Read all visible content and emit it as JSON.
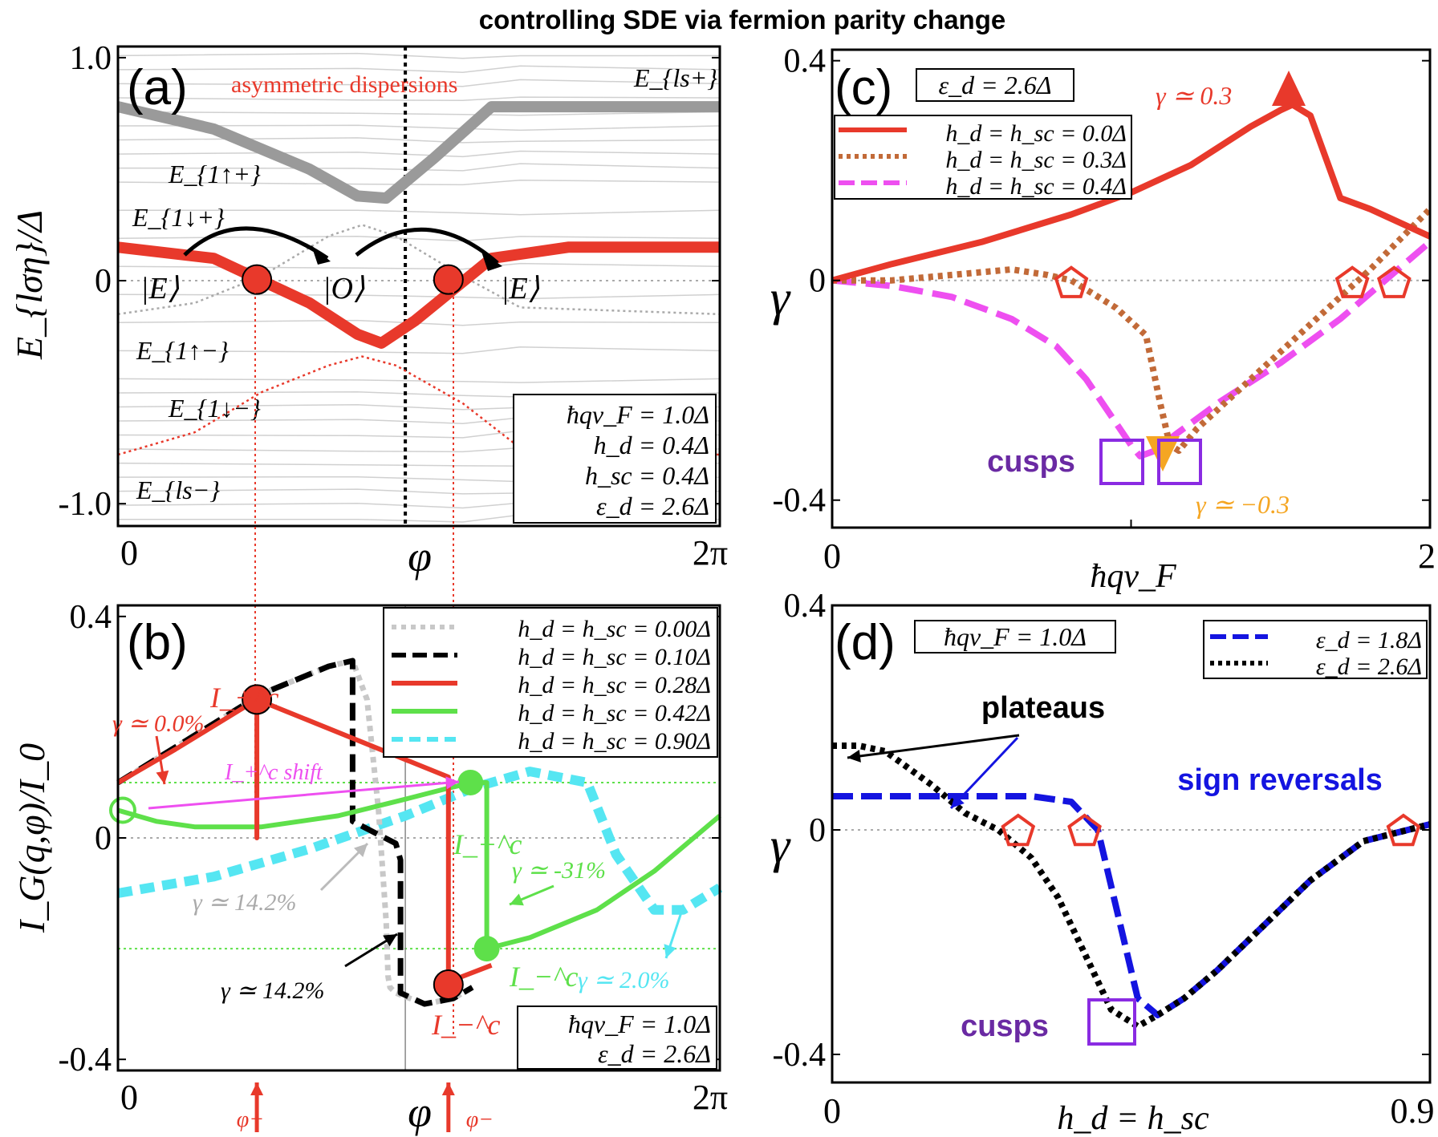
{
  "figure_title": "controlling SDE via fermion parity change",
  "colors": {
    "red": "#e8392b",
    "gray": "#9a9a9a",
    "green": "#5ee04a",
    "magenta": "#ee4ff0",
    "orange_brown": "#c26a38",
    "blue": "#1414e0",
    "purple": "#8a2be2",
    "cyan": "#55e6f2",
    "orange": "#f5a623",
    "black": "#000000"
  },
  "chart_data": [
    {
      "panel": "(a)",
      "type": "line",
      "ylabel": "E_{lση}/Δ",
      "xlabel": "φ",
      "xticks": [
        "0",
        "2π"
      ],
      "yticks": [
        "1.0",
        "0",
        "-1.0"
      ],
      "xlim": [
        0,
        6.2832
      ],
      "ylim": [
        -1.1,
        1.05
      ],
      "title_annotation": "asymmetric dispersions",
      "state_labels": [
        "|E⟩",
        "|O⟩",
        "|E⟩"
      ],
      "band_labels": [
        "E_{ls+}",
        "E_{1↑+}",
        "E_{1↓+}",
        "E_{1↑−}",
        "E_{1↓−}",
        "E_{ls−}"
      ],
      "info_box": [
        "ħqv_F = 1.0Δ",
        "h_d = 0.4Δ",
        "h_sc = 0.4Δ",
        "ε_d = 2.6Δ"
      ],
      "crossing_points_phi": [
        1.45,
        3.45
      ],
      "series": [
        {
          "name": "E_{1↑+}",
          "x": [
            0,
            1.0,
            2.0,
            2.5,
            2.8,
            3.3,
            3.9,
            4.7,
            6.2832
          ],
          "y": [
            0.78,
            0.68,
            0.5,
            0.38,
            0.37,
            0.55,
            0.78,
            0.78,
            0.78
          ]
        },
        {
          "name": "E_{1↓+}",
          "x": [
            0,
            0.8,
            1.5,
            2.2,
            2.55,
            2.9,
            3.6,
            4.2,
            6.2832
          ],
          "y": [
            -0.15,
            -0.1,
            0.02,
            0.2,
            0.25,
            0.2,
            0.02,
            -0.12,
            -0.15
          ]
        },
        {
          "name": "E_{1↑−}",
          "x": [
            0,
            1.0,
            2.0,
            2.5,
            2.75,
            3.1,
            3.9,
            4.7,
            6.2832
          ],
          "y": [
            0.15,
            0.1,
            -0.1,
            -0.24,
            -0.28,
            -0.18,
            0.1,
            0.15,
            0.15
          ]
        },
        {
          "name": "E_{1↓−}",
          "x": [
            0,
            0.8,
            1.5,
            2.2,
            2.55,
            2.9,
            3.6,
            4.2,
            6.2832
          ],
          "y": [
            -0.78,
            -0.68,
            -0.5,
            -0.38,
            -0.34,
            -0.38,
            -0.55,
            -0.75,
            -0.78
          ]
        }
      ]
    },
    {
      "panel": "(b)",
      "type": "line",
      "ylabel": "I_G(q,φ)/I_0",
      "xlabel": "φ",
      "xticks": [
        "0",
        "2π"
      ],
      "yticks": [
        "0.4",
        "0",
        "-0.4"
      ],
      "xlim": [
        0,
        6.2832
      ],
      "ylim": [
        -0.42,
        0.42
      ],
      "phase_markers": [
        "φ+",
        "φ−"
      ],
      "legend": [
        "h_d = h_sc = 0.00Δ",
        "h_d = h_sc = 0.10Δ",
        "h_d = h_sc = 0.28Δ",
        "h_d = h_sc = 0.42Δ",
        "h_d = h_sc = 0.90Δ"
      ],
      "info_box": [
        "ħqv_F = 1.0Δ",
        "ε_d = 2.6Δ"
      ],
      "annotations": [
        "γ ≃ 0.0%",
        "γ ≃ 14.2%",
        "γ ≃ 14.2%",
        "γ ≃ -31%",
        "γ ≃ 2.0%",
        "I_+^c shift"
      ],
      "critical_labels": [
        "I_+^c",
        "I_−^c",
        "I_+^c",
        "I_−^c"
      ],
      "series": [
        {
          "name": "h_d = h_sc = 0.00Δ",
          "x": [
            0,
            1.5,
            2.2,
            2.45,
            2.6,
            2.72,
            2.8,
            2.82,
            2.84,
            2.9,
            3.2,
            3.5,
            3.7
          ],
          "y": [
            0.1,
            0.26,
            0.31,
            0.32,
            0.25,
            0.05,
            -0.15,
            -0.25,
            -0.27,
            -0.28,
            -0.3,
            -0.29,
            -0.27
          ]
        },
        {
          "name": "h_d = h_sc = 0.10Δ",
          "x": [
            0,
            1.5,
            2.2,
            2.45,
            2.45,
            2.9,
            2.95,
            2.95,
            3.2,
            3.5,
            3.7
          ],
          "y": [
            0.1,
            0.26,
            0.31,
            0.32,
            0.03,
            -0.01,
            -0.04,
            -0.28,
            -0.3,
            -0.29,
            -0.27
          ]
        },
        {
          "name": "h_d = h_sc = 0.28Δ",
          "x": [
            0,
            0.6,
            1.45,
            1.45,
            1.45,
            3.45,
            3.45,
            3.45,
            3.9
          ],
          "y": [
            0.1,
            0.16,
            0.25,
            0.0,
            0.25,
            0.11,
            -0.26,
            -0.26,
            -0.23
          ]
        },
        {
          "name": "h_d = h_sc = 0.42Δ",
          "x": [
            0,
            0.4,
            0.8,
            1.5,
            2.3,
            3.0,
            3.45,
            3.7,
            3.85,
            3.85,
            4.3,
            5.0,
            5.6,
            6.2832
          ],
          "y": [
            0.05,
            0.03,
            0.02,
            0.02,
            0.04,
            0.07,
            0.09,
            0.1,
            0.1,
            -0.2,
            -0.18,
            -0.13,
            -0.06,
            0.04
          ]
        },
        {
          "name": "h_d = h_sc = 0.90Δ",
          "x": [
            0,
            1.0,
            2.0,
            3.0,
            3.7,
            4.3,
            4.9,
            5.2,
            5.6,
            5.9,
            6.2832
          ],
          "y": [
            -0.1,
            -0.07,
            -0.02,
            0.04,
            0.09,
            0.12,
            0.1,
            -0.03,
            -0.13,
            -0.13,
            -0.09
          ]
        }
      ]
    },
    {
      "panel": "(c)",
      "type": "line",
      "ylabel": "γ",
      "xlabel": "ħqv_F",
      "xticks": [
        "0",
        "2"
      ],
      "yticks": [
        "0.4",
        "0",
        "-0.4"
      ],
      "xlim": [
        0,
        2
      ],
      "ylim": [
        -0.45,
        0.42
      ],
      "info_box": "ε_d = 2.6Δ",
      "legend": [
        "h_d = h_sc = 0.0Δ",
        "h_d = h_sc = 0.3Δ",
        "h_d = h_sc = 0.4Δ"
      ],
      "annotations": [
        "γ ≃ 0.3",
        "γ ≃ −0.3",
        "cusps"
      ],
      "sign_reversals_x": [
        0.8,
        1.74,
        1.88
      ],
      "series": [
        {
          "name": "h_d = h_sc = 0.0Δ",
          "x": [
            0,
            0.2,
            0.5,
            0.8,
            1.0,
            1.2,
            1.4,
            1.5,
            1.54,
            1.6,
            1.7,
            1.8,
            2.0
          ],
          "y": [
            0.0,
            0.03,
            0.07,
            0.12,
            0.16,
            0.21,
            0.28,
            0.31,
            0.32,
            0.3,
            0.15,
            0.13,
            0.08
          ]
        },
        {
          "name": "h_d = h_sc = 0.3Δ",
          "x": [
            0,
            0.2,
            0.4,
            0.6,
            0.72,
            0.8,
            0.95,
            1.05,
            1.1,
            1.13,
            1.16,
            1.22,
            1.4,
            1.6,
            1.8,
            2.0
          ],
          "y": [
            0.0,
            0.0,
            0.01,
            0.02,
            0.01,
            0.0,
            -0.05,
            -0.1,
            -0.23,
            -0.3,
            -0.31,
            -0.27,
            -0.18,
            -0.08,
            0.02,
            0.13
          ]
        },
        {
          "name": "h_d = h_sc = 0.4Δ",
          "x": [
            0,
            0.2,
            0.4,
            0.6,
            0.75,
            0.85,
            0.95,
            1.0,
            1.03,
            1.08,
            1.15,
            1.3,
            1.5,
            1.7,
            1.85,
            2.0
          ],
          "y": [
            0.0,
            -0.01,
            -0.03,
            -0.07,
            -0.12,
            -0.18,
            -0.26,
            -0.3,
            -0.32,
            -0.31,
            -0.28,
            -0.22,
            -0.15,
            -0.07,
            0.0,
            0.07
          ]
        }
      ]
    },
    {
      "panel": "(d)",
      "type": "line",
      "ylabel": "γ",
      "xlabel": "h_d = h_sc",
      "xticks": [
        "0",
        "0.9"
      ],
      "yticks": [
        "0.4",
        "0",
        "-0.4"
      ],
      "xlim": [
        0,
        0.9
      ],
      "ylim": [
        -0.45,
        0.4
      ],
      "info_box": "ħqv_F = 1.0Δ",
      "legend": [
        "ε_d = 1.8Δ",
        "ε_d = 2.6Δ"
      ],
      "annotations": [
        "plateaus",
        "sign reversals",
        "cusps"
      ],
      "sign_reversals_x": [
        0.28,
        0.38,
        0.86
      ],
      "series": [
        {
          "name": "ε_d = 1.8Δ",
          "x": [
            0,
            0.1,
            0.2,
            0.3,
            0.36,
            0.4,
            0.42,
            0.44,
            0.46,
            0.49,
            0.53,
            0.58,
            0.65,
            0.72,
            0.8,
            0.9
          ],
          "y": [
            0.06,
            0.06,
            0.06,
            0.06,
            0.05,
            0.0,
            -0.1,
            -0.2,
            -0.3,
            -0.33,
            -0.3,
            -0.25,
            -0.17,
            -0.09,
            -0.02,
            0.01
          ]
        },
        {
          "name": "ε_d = 2.6Δ",
          "x": [
            0,
            0.04,
            0.08,
            0.15,
            0.2,
            0.25,
            0.3,
            0.34,
            0.38,
            0.42,
            0.46,
            0.49,
            0.53,
            0.58,
            0.65,
            0.72,
            0.8,
            0.9
          ],
          "y": [
            0.15,
            0.15,
            0.14,
            0.08,
            0.03,
            0.0,
            -0.05,
            -0.12,
            -0.22,
            -0.32,
            -0.35,
            -0.33,
            -0.3,
            -0.25,
            -0.17,
            -0.09,
            -0.02,
            0.01
          ]
        }
      ]
    }
  ]
}
